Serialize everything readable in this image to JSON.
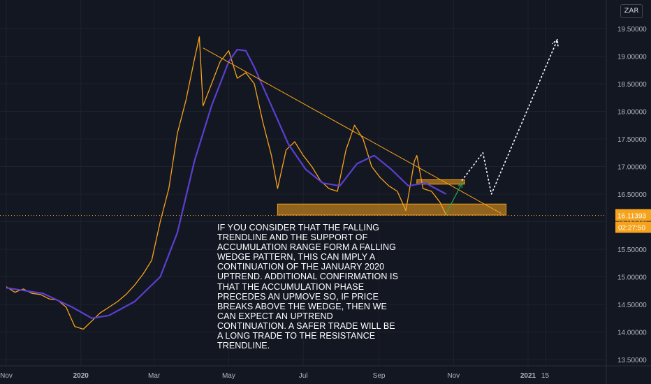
{
  "symbol_badge": "ZAR",
  "annotation": "IF YOU CONSIDER THAT THE FALLING TRENDLINE AND THE SUPPORT OF ACCUMULATION RANGE FORM A FALLING WEDGE PATTERN, THIS CAN IMPLY A CONTINUATION OF THE JANUARY 2020 UPTREND. ADDITIONAL CONFIRMATION IS THAT THE ACCUMULATION PHASE PRECEDES AN UPMOVE SO, IF PRICE BREAKS ABOVE THE WEDGE, THEN WE CAN EXPECT AN UPTREND CONTINUATION. A SAFER TRADE WILL BE A LONG TRADE TO THE RESISTANCE TRENDLINE.",
  "colors": {
    "background": "#131722",
    "grid": "#1e222d",
    "price": "#f7a21b",
    "moving_average": "#5b3fd1",
    "trendline": "#f7a21b",
    "zone_fill": "#f7a21b",
    "projection": "#ffffff",
    "arrow": "#22ab51",
    "price_tag": "#f7a21b",
    "axis_text": "#b2b5be"
  },
  "chart_data": {
    "type": "line",
    "title": "",
    "x_tick_labels": [
      "Nov",
      "2020",
      "Mar",
      "May",
      "Jul",
      "Sep",
      "Nov",
      "2021",
      "15"
    ],
    "y_tick_labels": [
      "19.50000",
      "19.00000",
      "18.50000",
      "18.00000",
      "17.50000",
      "17.00000",
      "16.50000",
      "16.00000",
      "15.50000",
      "15.00000",
      "14.50000",
      "14.00000",
      "13.50000"
    ],
    "ylim": [
      13.4,
      19.75
    ],
    "grid": true,
    "last_price": "16.11393",
    "countdown": "02:27:50",
    "series": [
      {
        "points": [
          [
            "2019-11-01",
            14.82
          ],
          [
            "2019-11-08",
            14.72
          ],
          [
            "2019-11-15",
            14.78
          ],
          [
            "2019-11-22",
            14.7
          ],
          [
            "2019-11-29",
            14.68
          ],
          [
            "2019-12-06",
            14.6
          ],
          [
            "2019-12-13",
            14.58
          ],
          [
            "2019-12-20",
            14.45
          ],
          [
            "2019-12-27",
            14.1
          ],
          [
            "2020-01-03",
            14.05
          ],
          [
            "2020-01-10",
            14.2
          ],
          [
            "2020-01-17",
            14.35
          ],
          [
            "2020-01-24",
            14.45
          ],
          [
            "2020-01-31",
            14.55
          ],
          [
            "2020-02-07",
            14.68
          ],
          [
            "2020-02-14",
            14.85
          ],
          [
            "2020-02-21",
            15.05
          ],
          [
            "2020-02-28",
            15.3
          ],
          [
            "2020-03-06",
            16.0
          ],
          [
            "2020-03-13",
            16.6
          ],
          [
            "2020-03-20",
            17.6
          ],
          [
            "2020-03-27",
            18.2
          ],
          [
            "2020-04-03",
            18.95
          ],
          [
            "2020-04-07",
            19.35
          ],
          [
            "2020-04-10",
            18.1
          ],
          [
            "2020-04-17",
            18.5
          ],
          [
            "2020-04-24",
            18.9
          ],
          [
            "2020-05-01",
            19.1
          ],
          [
            "2020-05-08",
            18.6
          ],
          [
            "2020-05-15",
            18.7
          ],
          [
            "2020-05-22",
            18.5
          ],
          [
            "2020-05-29",
            17.8
          ],
          [
            "2020-06-05",
            17.2
          ],
          [
            "2020-06-10",
            16.6
          ],
          [
            "2020-06-17",
            17.3
          ],
          [
            "2020-06-24",
            17.45
          ],
          [
            "2020-07-01",
            17.2
          ],
          [
            "2020-07-08",
            17.0
          ],
          [
            "2020-07-15",
            16.75
          ],
          [
            "2020-07-22",
            16.6
          ],
          [
            "2020-07-29",
            16.55
          ],
          [
            "2020-08-05",
            17.3
          ],
          [
            "2020-08-12",
            17.75
          ],
          [
            "2020-08-19",
            17.5
          ],
          [
            "2020-08-26",
            17.0
          ],
          [
            "2020-09-02",
            16.8
          ],
          [
            "2020-09-09",
            16.65
          ],
          [
            "2020-09-16",
            16.55
          ],
          [
            "2020-09-23",
            16.2
          ],
          [
            "2020-09-30",
            17.1
          ],
          [
            "2020-10-02",
            17.2
          ],
          [
            "2020-10-07",
            16.6
          ],
          [
            "2020-10-14",
            16.55
          ],
          [
            "2020-10-21",
            16.35
          ],
          [
            "2020-10-26",
            16.12
          ]
        ]
      },
      {
        "points": [
          [
            "2019-11-01",
            14.8
          ],
          [
            "2019-12-01",
            14.7
          ],
          [
            "2019-12-25",
            14.45
          ],
          [
            "2020-01-10",
            14.25
          ],
          [
            "2020-01-24",
            14.3
          ],
          [
            "2020-02-14",
            14.55
          ],
          [
            "2020-03-06",
            15.0
          ],
          [
            "2020-03-20",
            15.8
          ],
          [
            "2020-04-03",
            17.1
          ],
          [
            "2020-04-17",
            18.1
          ],
          [
            "2020-05-01",
            18.9
          ],
          [
            "2020-05-08",
            19.12
          ],
          [
            "2020-05-15",
            19.1
          ],
          [
            "2020-05-22",
            18.8
          ],
          [
            "2020-06-05",
            18.1
          ],
          [
            "2020-06-19",
            17.4
          ],
          [
            "2020-07-03",
            16.95
          ],
          [
            "2020-07-17",
            16.7
          ],
          [
            "2020-07-31",
            16.65
          ],
          [
            "2020-08-14",
            17.05
          ],
          [
            "2020-08-28",
            17.2
          ],
          [
            "2020-09-11",
            16.95
          ],
          [
            "2020-09-25",
            16.65
          ],
          [
            "2020-10-09",
            16.7
          ],
          [
            "2020-10-26",
            16.5
          ]
        ]
      }
    ],
    "trendline": [
      [
        "2020-04-10",
        19.15
      ],
      [
        "2020-12-10",
        16.15
      ]
    ],
    "support_zone": {
      "x": [
        "2020-06-10",
        "2020-12-14"
      ],
      "y": [
        16.12,
        16.32
      ]
    },
    "resistance_zone": {
      "x": [
        "2020-10-02",
        "2020-11-10"
      ],
      "y": [
        16.68,
        16.76
      ]
    },
    "breakout_arrow": [
      [
        "2020-10-26",
        16.15
      ],
      [
        "2020-11-08",
        16.7
      ]
    ],
    "projection_path": [
      [
        "2020-11-08",
        16.75
      ],
      [
        "2020-11-25",
        17.25
      ],
      [
        "2020-12-02",
        16.5
      ],
      [
        "2021-01-25",
        19.3
      ]
    ]
  }
}
